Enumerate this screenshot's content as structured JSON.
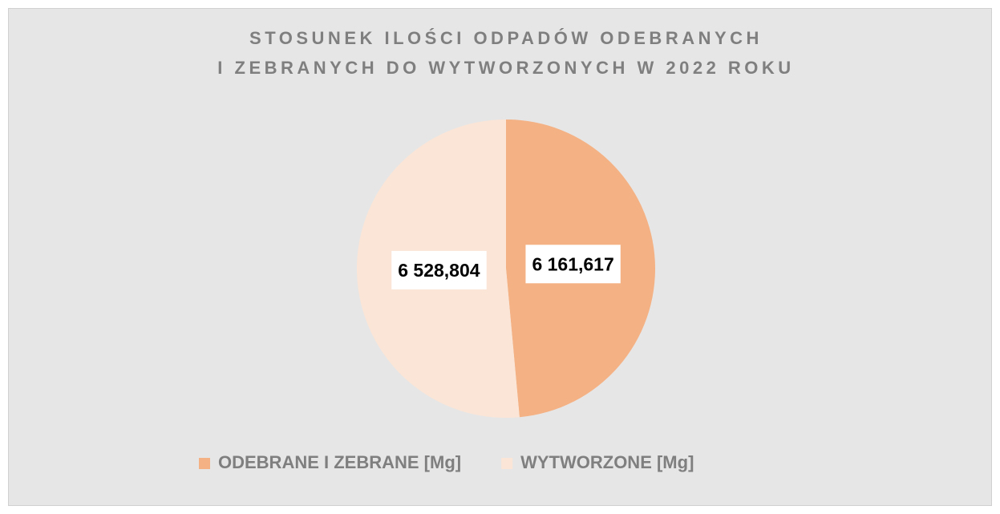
{
  "chart_data": {
    "type": "pie",
    "title": [
      "STOSUNEK ILOŚCI ODPADÓW ODEBRANYCH",
      "I ZEBRANYCH DO WYTWORZONYCH W 2022 ROKU"
    ],
    "categories": [
      "ODEBRANE I ZEBRANE [Mg]",
      "WYTWORZONE [Mg]"
    ],
    "values": [
      6161.617,
      6528.804
    ],
    "value_labels": [
      "6 161,617",
      "6 528,804"
    ],
    "colors": [
      "#f4b183",
      "#fbe5d6"
    ],
    "legend": "bottom"
  }
}
